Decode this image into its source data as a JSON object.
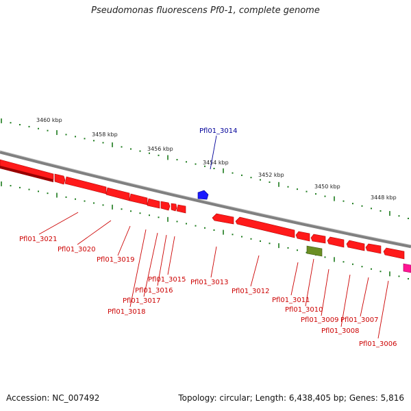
{
  "title": "Pseudomonas fluorescens Pf0-1, complete genome",
  "footer": {
    "accession": "Accession: NC_007492",
    "summary": "Topology: circular; Length: 6,438,405 bp; Genes: 5,816"
  },
  "scale": {
    "tick_labels": [
      "3460 kbp",
      "3458 kbp",
      "3456 kbp",
      "3454 kbp",
      "3452 kbp",
      "3450 kbp",
      "3448 kbp"
    ]
  },
  "colors": {
    "gene_red": "#ff0000",
    "gene_blue": "#0000ee",
    "gene_green": "#6b8e23",
    "gene_magenta": "#ff1493",
    "tick_green": "#1a7a1a",
    "backbone": "#808080",
    "label_red": "#cc0000",
    "label_blue": "#000099"
  },
  "genes": [
    {
      "id": "Pfl01_3021",
      "color": "label_red"
    },
    {
      "id": "Pfl01_3020",
      "color": "label_red"
    },
    {
      "id": "Pfl01_3019",
      "color": "label_red"
    },
    {
      "id": "Pfl01_3018",
      "color": "label_red"
    },
    {
      "id": "Pfl01_3017",
      "color": "label_red"
    },
    {
      "id": "Pfl01_3016",
      "color": "label_red"
    },
    {
      "id": "Pfl01_3015",
      "color": "label_red"
    },
    {
      "id": "Pfl01_3014",
      "color": "label_blue"
    },
    {
      "id": "Pfl01_3013",
      "color": "label_red"
    },
    {
      "id": "Pfl01_3012",
      "color": "label_red"
    },
    {
      "id": "Pfl01_3011",
      "color": "label_red"
    },
    {
      "id": "Pfl01_3010",
      "color": "label_red"
    },
    {
      "id": "Pfl01_3009",
      "color": "label_red"
    },
    {
      "id": "Pfl01_3008",
      "color": "label_red"
    },
    {
      "id": "Pfl01_3007",
      "color": "label_red"
    },
    {
      "id": "Pfl01_3006",
      "color": "label_red"
    }
  ]
}
